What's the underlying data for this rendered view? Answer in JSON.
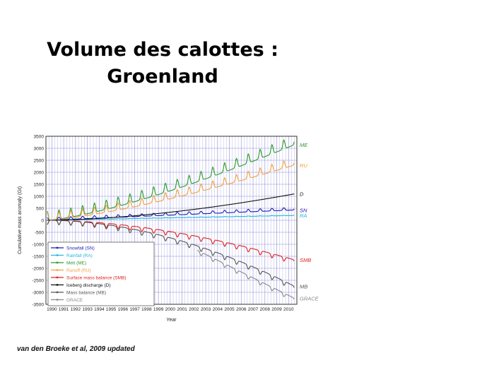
{
  "slide": {
    "title_line1": "Volume des calottes :",
    "title_line2": "Groenland",
    "citation": "van den Broeke et al, 2009 updated"
  },
  "chart_data": {
    "type": "line",
    "xlabel": "Year",
    "ylabel": "Cumulative mass anomaly (Gt)",
    "xlim": [
      1989.5,
      2010.7
    ],
    "ylim": [
      -3500,
      3500
    ],
    "yticks": [
      3500,
      3000,
      2500,
      2000,
      1500,
      1000,
      500,
      0,
      -500,
      -1000,
      -1500,
      -2000,
      -2500,
      -3000,
      -3500
    ],
    "xticks": [
      "1990",
      "1991",
      "1992",
      "1993",
      "1994",
      "1995",
      "1996",
      "1997",
      "1998",
      "1999",
      "2000",
      "2001",
      "2002",
      "2003",
      "2004",
      "2005",
      "2006",
      "2007",
      "2008",
      "2009",
      "2010"
    ],
    "grid": true,
    "legend_position": "lower-left",
    "series": [
      {
        "name": "Snowfall (SN)",
        "end_label": "SN",
        "color": "#1a1ab8",
        "x_start": 1989.6,
        "x_end": 2010.5,
        "start": 0,
        "end": 430,
        "seasonal": 110,
        "curve": 1.0
      },
      {
        "name": "Rainfall (RA)",
        "end_label": "RA",
        "color": "#20b6e0",
        "x_start": 1989.6,
        "x_end": 2010.5,
        "start": 0,
        "end": 200,
        "seasonal": 15,
        "curve": 1.0
      },
      {
        "name": "Melt (ME)",
        "end_label": "ME",
        "color": "#2a9a2a",
        "x_start": 1989.6,
        "x_end": 2010.5,
        "start": 0,
        "end": 3150,
        "seasonal": 380,
        "curve": 1.35
      },
      {
        "name": "Runoff (RU)",
        "end_label": "RU",
        "color": "#f0a040",
        "x_start": 1989.6,
        "x_end": 2010.5,
        "start": 0,
        "end": 2300,
        "seasonal": 300,
        "curve": 1.35
      },
      {
        "name": "Surface mass balance (SMB)",
        "end_label": "SMB",
        "color": "#e02020",
        "x_start": 1989.6,
        "x_end": 2010.5,
        "start": 0,
        "end": -1650,
        "seasonal": 180,
        "curve": 1.8
      },
      {
        "name": "Iceberg discharge (D)",
        "end_label": "D",
        "color": "#111111",
        "x_start": 1989.6,
        "x_end": 2010.5,
        "start": 0,
        "end": 1100,
        "seasonal": 0,
        "curve": 1.7
      },
      {
        "name": "Mass balance (MB)",
        "end_label": "MB",
        "color": "#555555",
        "x_start": 1989.6,
        "x_end": 2010.5,
        "start": 0,
        "end": -2750,
        "seasonal": 180,
        "curve": 1.9
      },
      {
        "name": "GRACE",
        "end_label": "GRACE",
        "color": "#888888",
        "x_start": 2002.3,
        "x_end": 2010.5,
        "start": -1250,
        "end": -3250,
        "seasonal": 150,
        "curve": 1.0
      }
    ]
  }
}
